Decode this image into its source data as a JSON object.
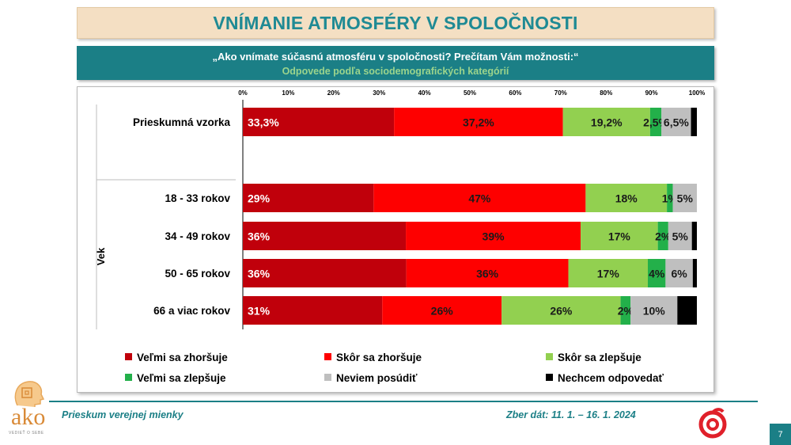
{
  "title": "VNÍMANIE ATMOSFÉRY V SPOLOČNOSTI",
  "question": "„Ako vnímate súčasnú atmosféru v spoločnosti? Prečítam Vám možnosti:“",
  "subtitle": "Odpovede podľa sociodemografických kategórií",
  "footer_left": "Prieskum verejnej mienky",
  "footer_right": "Zber dát: 11. 1. – 16. 1. 2024",
  "page_number": "7",
  "logo_text": "ako",
  "logo_subtext": "VEDIEŤ O SEBE",
  "chart_data": {
    "type": "bar",
    "orientation": "horizontal",
    "stacked": "percent",
    "xlim": [
      0,
      100
    ],
    "x_ticks": [
      "0%",
      "10%",
      "20%",
      "30%",
      "40%",
      "50%",
      "60%",
      "70%",
      "80%",
      "90%",
      "100%"
    ],
    "group_label": "Vek",
    "categories": [
      "Prieskumná vzorka",
      "18 - 33 rokov",
      "34 - 49 rokov",
      "50 - 65 rokov",
      "66 a viac rokov"
    ],
    "series": [
      {
        "name": "Veľmi sa zhoršuje",
        "color": "#c0000b",
        "values": [
          33.3,
          28.8,
          35.9,
          36.0,
          30.7
        ],
        "labels": [
          "33,3%",
          "29%",
          "36%",
          "36%",
          "31%"
        ]
      },
      {
        "name": "Skôr sa zhoršuje",
        "color": "#fe0000",
        "values": [
          37.2,
          46.7,
          38.5,
          35.7,
          26.3
        ],
        "labels": [
          "37,2%",
          "47%",
          "39%",
          "36%",
          "26%"
        ]
      },
      {
        "name": "Skôr sa zlepšuje",
        "color": "#92d050",
        "values": [
          19.2,
          17.9,
          17.0,
          17.5,
          26.2
        ],
        "labels": [
          "19,2%",
          "18%",
          "17%",
          "17%",
          "26%"
        ]
      },
      {
        "name": "Veľmi sa zlepšuje",
        "color": "#23b04a",
        "values": [
          2.5,
          1.3,
          2.3,
          3.9,
          2.2
        ],
        "labels": [
          "2,5%",
          "1%",
          "2%",
          "4%",
          "2%"
        ]
      },
      {
        "name": "Neviem posúdiť",
        "color": "#bfbfbf",
        "values": [
          6.5,
          5.3,
          5.2,
          6.0,
          10.3
        ],
        "labels": [
          "6,5%",
          "5%",
          "5%",
          "6%",
          "10%"
        ]
      },
      {
        "name": "Nechcem odpovedať",
        "color": "#000000",
        "values": [
          1.3,
          0.0,
          1.1,
          0.9,
          4.3
        ],
        "labels": [
          "",
          "",
          "",
          "",
          ""
        ]
      }
    ]
  }
}
